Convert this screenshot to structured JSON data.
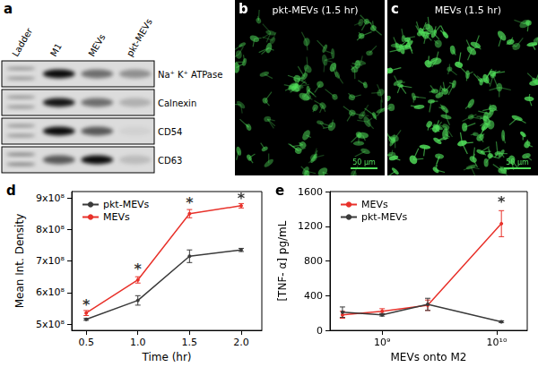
{
  "blot": {
    "label": "a",
    "lanes": [
      "Ladder",
      "M1",
      "MEVs",
      "pkt-MEVs"
    ],
    "rows": [
      {
        "name": "Na⁺ K⁺ ATPase",
        "intensity": [
          0.4,
          0.95,
          0.5,
          0.35
        ]
      },
      {
        "name": "Calnexin",
        "intensity": [
          0.4,
          0.9,
          0.5,
          0.2
        ]
      },
      {
        "name": "CD54",
        "intensity": [
          0.4,
          0.95,
          0.6,
          0.05
        ]
      },
      {
        "name": "CD63",
        "intensity": [
          0.5,
          0.6,
          0.95,
          0.15
        ]
      }
    ]
  },
  "micrographs": [
    {
      "label": "b",
      "title": "pkt-MEVs (1.5 hr)",
      "scale_bar": "50 μm"
    },
    {
      "label": "c",
      "title": "MEVs (1.5 hr)",
      "scale_bar": "50 μm"
    }
  ],
  "chart_data": [
    {
      "panel": "d",
      "type": "line",
      "x_label": "Time (hr)",
      "y_label": "Mean Int. Density",
      "x": [
        0.5,
        1.0,
        1.5,
        2.0
      ],
      "xlim": [
        0.36,
        2.2
      ],
      "xticks": [
        0.5,
        {
          "value": 1,
          "label": "1.0"
        },
        1.5,
        {
          "value": 2,
          "label": "2.0"
        }
      ],
      "ylim": [
        480000000,
        920000000
      ],
      "yticks": [
        {
          "value": 500000000,
          "label": "5x10⁸"
        },
        {
          "value": 600000000,
          "label": "6x10⁸"
        },
        {
          "value": 700000000,
          "label": "7x10⁸"
        },
        {
          "value": 800000000,
          "label": "8x10⁸"
        },
        {
          "value": 900000000,
          "label": "9x10⁸"
        }
      ],
      "series": [
        {
          "name": "pkt-MEVs",
          "color": "#3a3a3a",
          "values": [
            515000000,
            575000000,
            715000000,
            735000000
          ],
          "errors": [
            3000000,
            15000000,
            20000000,
            5000000
          ]
        },
        {
          "name": "MEVs",
          "color": "#e8312a",
          "values": [
            535000000,
            640000000,
            850000000,
            875000000
          ],
          "errors": [
            8000000,
            10000000,
            13000000,
            7000000
          ]
        }
      ],
      "annotations": [
        {
          "text": "*",
          "x": 0.5,
          "y": 560000000
        },
        {
          "text": "*",
          "x": 1.0,
          "y": 675000000
        },
        {
          "text": "*",
          "x": 1.5,
          "y": 885000000
        },
        {
          "text": "*",
          "x": 2.0,
          "y": 900000000
        }
      ],
      "legend": "upper left",
      "grid": false
    },
    {
      "panel": "e",
      "type": "line",
      "x_label": "MEVs onto M2",
      "y_label": "[TNF- α] pg/mL",
      "log": "x",
      "x": [
        450000000,
        1000000000,
        2500000000,
        11000000000
      ],
      "xlim": [
        350000000,
        18500000000
      ],
      "xticks": [
        {
          "value": 1000000000,
          "label": "10⁹"
        },
        {
          "value": 10000000000,
          "label": "10¹⁰"
        }
      ],
      "ylim": [
        0,
        1600
      ],
      "yticks": [
        0,
        400,
        800,
        1200,
        1600
      ],
      "series": [
        {
          "name": "MEVs",
          "color": "#e8312a",
          "values": [
            180,
            220,
            290,
            1230
          ],
          "errors": [
            40,
            30,
            60,
            150
          ]
        },
        {
          "name": "pkt-MEVs",
          "color": "#3a3a3a",
          "values": [
            210,
            180,
            300,
            100
          ],
          "errors": [
            60,
            15,
            70,
            10
          ]
        }
      ],
      "annotations": [
        {
          "text": "*",
          "x": 11000000000,
          "y": 1480
        }
      ],
      "legend": "upper left",
      "grid": false
    }
  ]
}
